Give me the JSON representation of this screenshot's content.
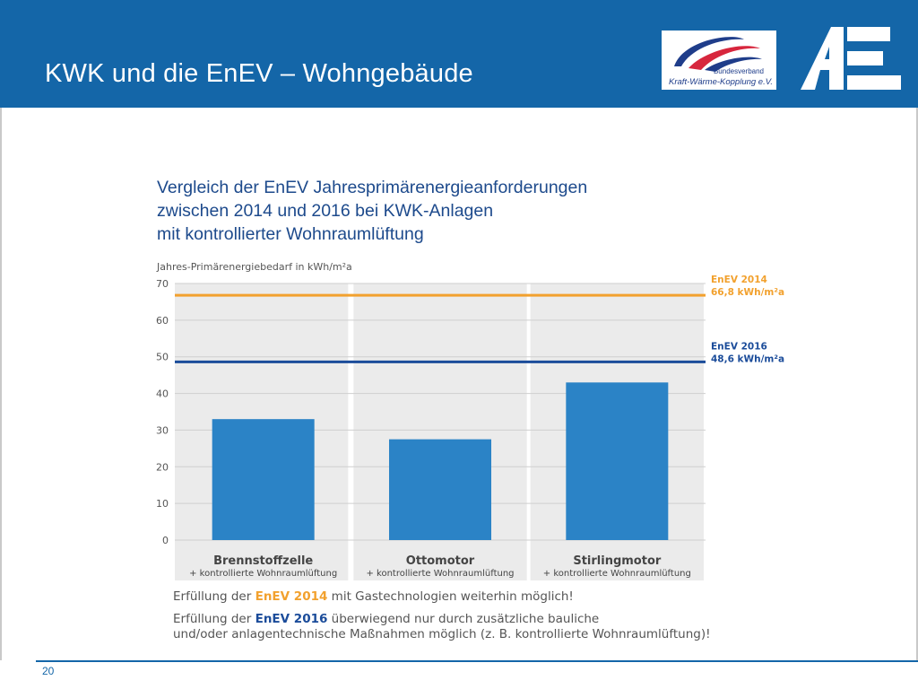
{
  "slide": {
    "title": "KWK und die EnEV – Wohngebäude",
    "page_number": "20",
    "subtitle_lines": [
      "Vergleich der EnEV Jahresprimärenergieanforderungen",
      "zwischen 2014 und 2016 bei KWK-Anlagen",
      "mit kontrollierter Wohnraumlüftung"
    ]
  },
  "logos": {
    "bkwk": {
      "line1": "Bundesverband",
      "line2": "Kraft-Wärme-Kopplung e.V."
    },
    "ae": "ae-logo"
  },
  "colors": {
    "header_blue": "#1466a8",
    "bar_blue": "#2b83c6",
    "enev2014_orange": "#f2a12e",
    "enev2016_blue": "#1b4c9a",
    "panel_gray": "#ebebeb"
  },
  "chart_data": {
    "type": "bar",
    "ylabel": "Jahres-Primärenergiebedarf in kWh/m²a",
    "ylim": [
      0,
      70
    ],
    "yticks": [
      0,
      10,
      20,
      30,
      40,
      50,
      60,
      70
    ],
    "grid": true,
    "categories": [
      "Brennstoffzelle",
      "Ottomotor",
      "Stirlingmotor"
    ],
    "category_sublabels": [
      "+ kontrollierte Wohnraumlüftung",
      "+ kontrollierte Wohnraumlüftung",
      "+ kontrollierte Wohnraumlüftung"
    ],
    "values": [
      33,
      27.5,
      43
    ],
    "reference_lines": [
      {
        "label": "EnEV 2014",
        "value_label": "66,8 kWh/m²a",
        "value": 66.8,
        "color": "#f2a12e"
      },
      {
        "label": "EnEV 2016",
        "value_label": "48,6 kWh/m²a",
        "value": 48.6,
        "color": "#1b4c9a"
      }
    ]
  },
  "notes": {
    "line1_a": "Erfüllung der ",
    "line1_highlight": "EnEV 2014",
    "line1_b": " mit Gastechnologien weiterhin möglich!",
    "line2_a": "Erfüllung der ",
    "line2_highlight": "EnEV 2016",
    "line2_b": " überwiegend nur durch zusätzliche bauliche",
    "line3": "und/oder anlagentechnische Maßnahmen möglich (z. B. kontrollierte Wohnraumlüftung)!"
  }
}
